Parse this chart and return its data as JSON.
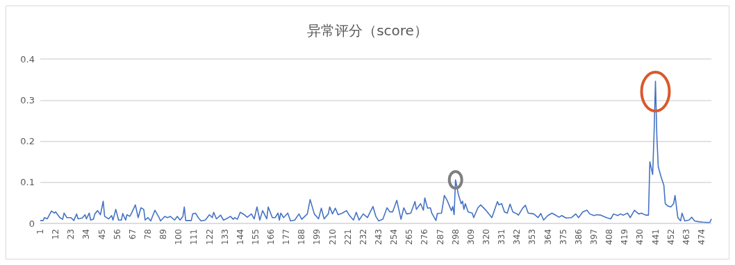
{
  "chart_data": {
    "type": "line",
    "title": "异常评分（score）",
    "x": [
      1,
      3,
      4,
      6,
      9,
      11,
      12,
      15,
      17,
      18,
      20,
      23,
      25,
      27,
      28,
      31,
      33,
      34,
      36,
      37,
      39,
      40,
      42,
      44,
      46,
      47,
      50,
      52,
      53,
      55,
      57,
      59,
      60,
      62,
      63,
      65,
      66,
      69,
      71,
      73,
      75,
      76,
      78,
      80,
      83,
      86,
      87,
      90,
      92,
      94,
      97,
      99,
      101,
      103,
      104,
      105,
      109,
      110,
      112,
      114,
      116,
      119,
      122,
      124,
      125,
      127,
      130,
      132,
      134,
      137,
      139,
      140,
      142,
      144,
      147,
      149,
      152,
      154,
      156,
      158,
      160,
      163,
      164,
      167,
      169,
      171,
      172,
      173,
      175,
      178,
      180,
      183,
      186,
      188,
      192,
      194,
      197,
      200,
      202,
      204,
      207,
      208,
      210,
      212,
      214,
      217,
      220,
      222,
      225,
      227,
      229,
      232,
      235,
      237,
      239,
      241,
      243,
      246,
      249,
      251,
      253,
      256,
      259,
      261,
      263,
      266,
      269,
      270,
      273,
      275,
      276,
      278,
      280,
      281,
      284,
      285,
      288,
      290,
      292,
      295,
      296,
      297,
      298,
      300,
      302,
      303,
      304,
      305,
      307,
      310,
      311,
      314,
      316,
      320,
      324,
      328,
      329,
      331,
      333,
      335,
      337,
      339,
      342,
      343,
      346,
      348,
      350,
      354,
      357,
      359,
      361,
      364,
      367,
      369,
      372,
      374,
      377,
      381,
      384,
      386,
      389,
      392,
      394,
      397,
      399,
      402,
      406,
      409,
      411,
      414,
      416,
      418,
      421,
      423,
      426,
      429,
      431,
      434,
      436,
      437,
      439,
      440,
      441,
      442,
      443,
      445,
      447,
      448,
      450,
      452,
      454,
      455,
      457,
      459,
      460,
      462,
      465,
      467,
      469,
      472,
      475,
      479,
      480,
      481
    ],
    "series": [
      {
        "color": "#4472c4",
        "values": [
          0.007,
          0.007,
          0.014,
          0.011,
          0.03,
          0.025,
          0.028,
          0.014,
          0.01,
          0.025,
          0.014,
          0.014,
          0.007,
          0.023,
          0.011,
          0.013,
          0.021,
          0.011,
          0.025,
          0.008,
          0.01,
          0.023,
          0.031,
          0.021,
          0.054,
          0.017,
          0.011,
          0.019,
          0.008,
          0.034,
          0.008,
          0.008,
          0.024,
          0.008,
          0.021,
          0.017,
          0.023,
          0.045,
          0.014,
          0.038,
          0.034,
          0.008,
          0.014,
          0.006,
          0.032,
          0.014,
          0.006,
          0.017,
          0.014,
          0.017,
          0.008,
          0.017,
          0.008,
          0.017,
          0.04,
          0.007,
          0.007,
          0.023,
          0.025,
          0.014,
          0.006,
          0.008,
          0.021,
          0.014,
          0.027,
          0.011,
          0.02,
          0.008,
          0.011,
          0.017,
          0.01,
          0.014,
          0.01,
          0.027,
          0.021,
          0.015,
          0.023,
          0.011,
          0.04,
          0.008,
          0.031,
          0.011,
          0.04,
          0.014,
          0.014,
          0.025,
          0.008,
          0.025,
          0.014,
          0.025,
          0.006,
          0.008,
          0.023,
          0.01,
          0.023,
          0.058,
          0.023,
          0.011,
          0.037,
          0.011,
          0.023,
          0.04,
          0.023,
          0.037,
          0.021,
          0.025,
          0.031,
          0.02,
          0.008,
          0.027,
          0.008,
          0.023,
          0.014,
          0.028,
          0.041,
          0.017,
          0.006,
          0.01,
          0.038,
          0.028,
          0.028,
          0.056,
          0.01,
          0.038,
          0.023,
          0.025,
          0.053,
          0.034,
          0.048,
          0.032,
          0.062,
          0.037,
          0.038,
          0.025,
          0.007,
          0.024,
          0.025,
          0.068,
          0.056,
          0.031,
          0.041,
          0.021,
          0.106,
          0.071,
          0.048,
          0.054,
          0.034,
          0.048,
          0.028,
          0.025,
          0.014,
          0.038,
          0.045,
          0.031,
          0.014,
          0.053,
          0.045,
          0.048,
          0.028,
          0.025,
          0.047,
          0.028,
          0.023,
          0.02,
          0.037,
          0.044,
          0.025,
          0.023,
          0.014,
          0.024,
          0.008,
          0.019,
          0.025,
          0.021,
          0.015,
          0.019,
          0.013,
          0.014,
          0.023,
          0.014,
          0.028,
          0.032,
          0.023,
          0.019,
          0.021,
          0.02,
          0.014,
          0.011,
          0.023,
          0.019,
          0.023,
          0.02,
          0.025,
          0.014,
          0.032,
          0.023,
          0.025,
          0.02,
          0.02,
          0.15,
          0.119,
          0.218,
          0.346,
          0.212,
          0.138,
          0.113,
          0.093,
          0.048,
          0.042,
          0.04,
          0.048,
          0.068,
          0.014,
          0.006,
          0.025,
          0.006,
          0.008,
          0.015,
          0.006,
          0.004,
          0.003,
          0.002,
          0.003,
          0.011
        ]
      }
    ],
    "xlim": [
      1,
      481
    ],
    "xticks": [
      1,
      12,
      23,
      34,
      45,
      56,
      67,
      78,
      89,
      100,
      111,
      122,
      133,
      144,
      155,
      166,
      177,
      188,
      199,
      210,
      221,
      232,
      243,
      254,
      265,
      276,
      287,
      298,
      309,
      320,
      331,
      342,
      353,
      364,
      375,
      386,
      397,
      408,
      419,
      430,
      441,
      452,
      463,
      474
    ],
    "ylim": [
      0,
      0.4
    ],
    "yticks": [
      0,
      0.1,
      0.2,
      0.3,
      0.4
    ],
    "grid": "y",
    "marker": "none",
    "line_style": "solid"
  }
}
